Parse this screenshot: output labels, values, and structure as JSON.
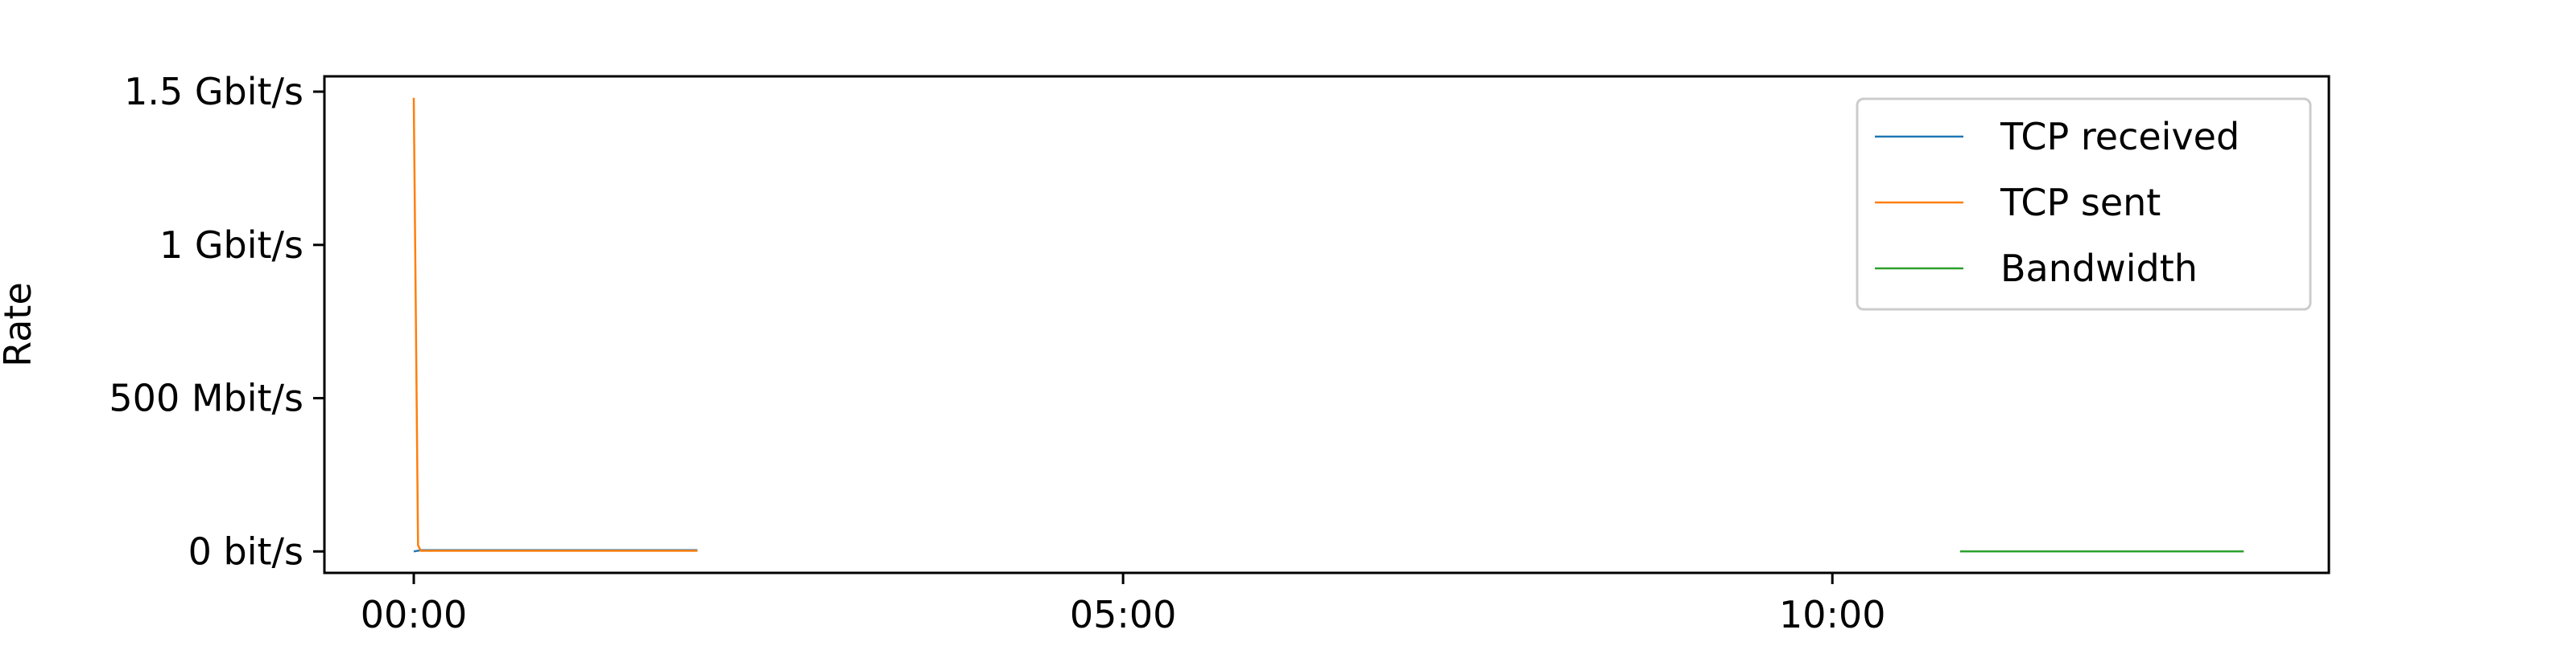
{
  "chart_data": {
    "type": "line",
    "title": "",
    "xlabel": "",
    "ylabel": "Rate",
    "x_unit": "minutes",
    "xlim": [
      -0.63,
      13.5
    ],
    "ylim": [
      -0.07,
      1.55
    ],
    "y_unit": "Gbit/s",
    "x_ticks": [
      {
        "value": 0,
        "label": "00:00"
      },
      {
        "value": 5,
        "label": "05:00"
      },
      {
        "value": 10,
        "label": "10:00"
      }
    ],
    "y_ticks": [
      {
        "value": 0,
        "label": "0 bit/s"
      },
      {
        "value": 0.5,
        "label": "500 Mbit/s"
      },
      {
        "value": 1,
        "label": "1 Gbit/s"
      },
      {
        "value": 1.5,
        "label": "1.5 Gbit/s"
      }
    ],
    "grid": false,
    "legend_position": "top-right",
    "series": [
      {
        "name": "TCP received",
        "color": "#1f77b4",
        "x": [
          0.0,
          0.05,
          0.1,
          0.2,
          0.3,
          0.4,
          0.5,
          0.6,
          0.7,
          0.8,
          0.9,
          1.0,
          1.1,
          1.2,
          1.3,
          1.4,
          1.5,
          1.6,
          1.7,
          1.8,
          1.9,
          2.0
        ],
        "y": [
          0,
          0.004,
          0.004,
          0.004,
          0.004,
          0.004,
          0.004,
          0.004,
          0.004,
          0.004,
          0.004,
          0.004,
          0.004,
          0.004,
          0.004,
          0.004,
          0.004,
          0.004,
          0.004,
          0.004,
          0.004,
          0.004
        ]
      },
      {
        "name": "TCP sent",
        "color": "#ff7f0e",
        "x": [
          0.0,
          0.03,
          0.05,
          0.1,
          0.2,
          0.3,
          0.4,
          0.5,
          0.6,
          0.7,
          0.8,
          0.9,
          1.0,
          1.1,
          1.2,
          1.3,
          1.4,
          1.5,
          1.6,
          1.7,
          1.8,
          1.9,
          2.0
        ],
        "y": [
          1.48,
          0.02,
          0.002,
          0.002,
          0.002,
          0.002,
          0.002,
          0.002,
          0.002,
          0.002,
          0.002,
          0.002,
          0.002,
          0.002,
          0.002,
          0.002,
          0.002,
          0.002,
          0.002,
          0.002,
          0.002,
          0.002,
          0.002
        ]
      },
      {
        "name": "Bandwidth",
        "color": "#2ca02c",
        "x": [
          10.9,
          12.9
        ],
        "y": [
          0,
          0
        ]
      }
    ]
  }
}
